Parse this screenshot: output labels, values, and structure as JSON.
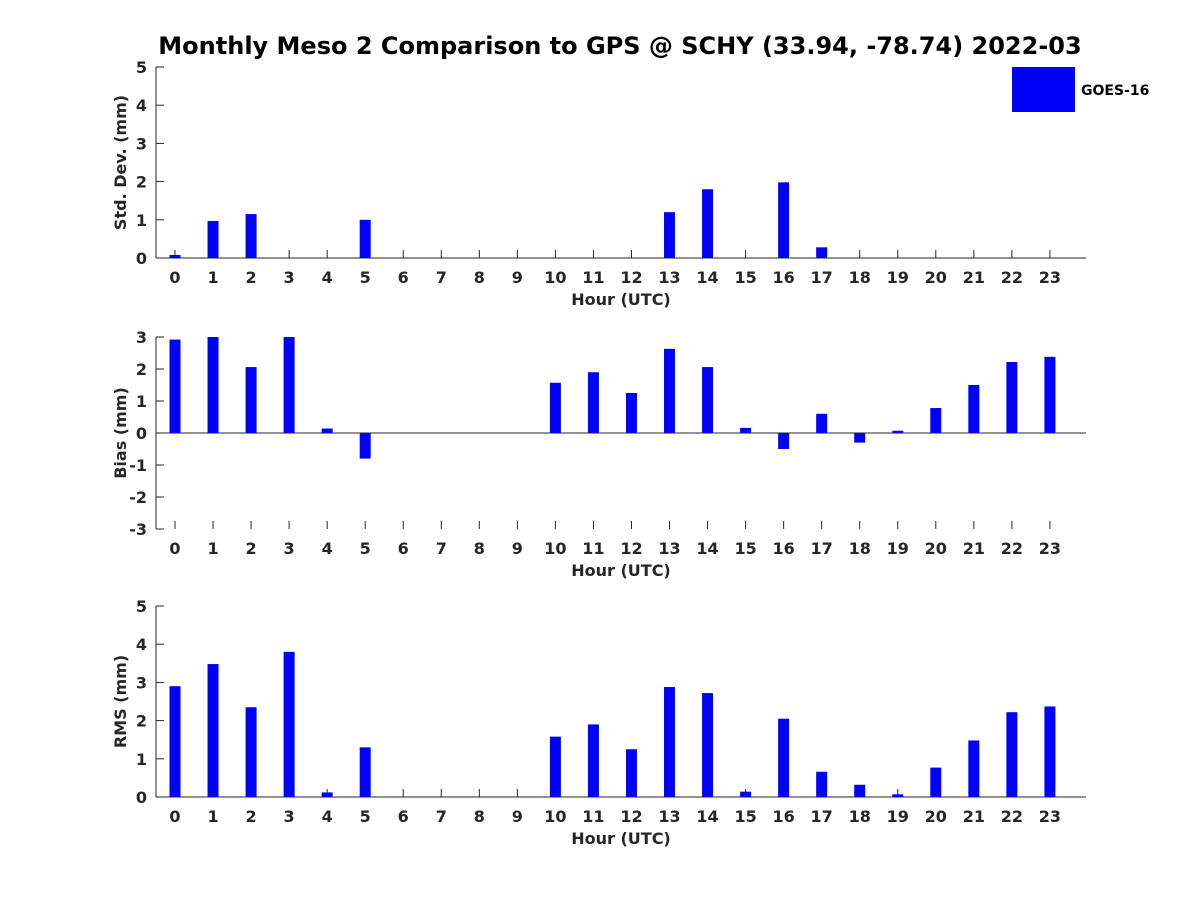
{
  "title": "Monthly Meso 2 Comparison to GPS @ SCHY (33.94, -78.74) 2022-03",
  "legend": {
    "label": "GOES-16",
    "color": "#0000ff"
  },
  "colors": {
    "bar": "#0000ff",
    "axis": "#262626"
  },
  "chart_data": [
    {
      "type": "bar",
      "ylabel": "Std. Dev. (mm)",
      "xlabel": "Hour (UTC)",
      "ylim": [
        0,
        5
      ],
      "yticks": [
        0,
        1,
        2,
        3,
        4,
        5
      ],
      "categories": [
        "0",
        "1",
        "2",
        "3",
        "4",
        "5",
        "6",
        "7",
        "8",
        "9",
        "10",
        "11",
        "12",
        "13",
        "14",
        "15",
        "16",
        "17",
        "18",
        "19",
        "20",
        "21",
        "22",
        "23"
      ],
      "values": [
        0.08,
        0.97,
        1.15,
        0,
        0,
        1.0,
        0,
        0,
        0,
        0,
        0,
        0,
        0,
        1.2,
        1.8,
        0,
        1.98,
        0.28,
        0,
        0,
        0,
        0,
        0,
        0
      ]
    },
    {
      "type": "bar",
      "ylabel": "Bias (mm)",
      "xlabel": "Hour (UTC)",
      "ylim": [
        -3,
        3
      ],
      "yticks": [
        -3,
        -2,
        -1,
        0,
        1,
        2,
        3
      ],
      "categories": [
        "0",
        "1",
        "2",
        "3",
        "4",
        "5",
        "6",
        "7",
        "8",
        "9",
        "10",
        "11",
        "12",
        "13",
        "14",
        "15",
        "16",
        "17",
        "18",
        "19",
        "20",
        "21",
        "22",
        "23"
      ],
      "values": [
        2.92,
        3.0,
        2.06,
        3.0,
        0.14,
        -0.8,
        0,
        0,
        0,
        0,
        1.57,
        1.9,
        1.25,
        2.63,
        2.06,
        0.16,
        -0.5,
        0.6,
        -0.3,
        0.07,
        0.78,
        1.5,
        2.22,
        2.38
      ]
    },
    {
      "type": "bar",
      "ylabel": "RMS (mm)",
      "xlabel": "Hour (UTC)",
      "ylim": [
        0,
        5
      ],
      "yticks": [
        0,
        1,
        2,
        3,
        4,
        5
      ],
      "categories": [
        "0",
        "1",
        "2",
        "3",
        "4",
        "5",
        "6",
        "7",
        "8",
        "9",
        "10",
        "11",
        "12",
        "13",
        "14",
        "15",
        "16",
        "17",
        "18",
        "19",
        "20",
        "21",
        "22",
        "23"
      ],
      "values": [
        2.9,
        3.48,
        2.35,
        3.8,
        0.12,
        1.3,
        0,
        0,
        0,
        0,
        1.58,
        1.9,
        1.25,
        2.88,
        2.72,
        0.14,
        2.05,
        0.66,
        0.32,
        0.07,
        0.77,
        1.48,
        2.22,
        2.37
      ]
    }
  ]
}
